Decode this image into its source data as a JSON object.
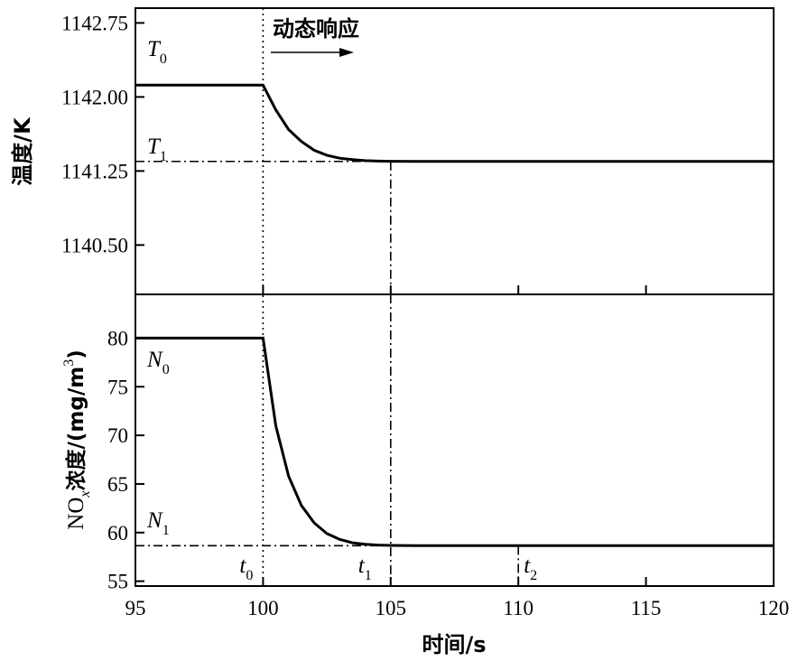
{
  "chart_data": [
    {
      "type": "line",
      "panel": "top",
      "ylabel": "温度/K",
      "ylim": [
        1140.0,
        1142.9
      ],
      "yticks": [
        "1140.50",
        "1141.25",
        "1142.00",
        "1142.75"
      ],
      "ytick_values": [
        1140.5,
        1141.25,
        1142.0,
        1142.75
      ],
      "xlim": [
        95,
        120
      ],
      "series": [
        {
          "x": [
            95,
            100,
            100.5,
            101,
            101.5,
            102,
            102.5,
            103,
            103.5,
            104,
            104.5,
            105,
            106,
            108,
            110,
            115,
            120
          ],
          "y": [
            1142.12,
            1142.12,
            1141.87,
            1141.67,
            1141.55,
            1141.46,
            1141.41,
            1141.38,
            1141.365,
            1141.355,
            1141.35,
            1141.348,
            1141.347,
            1141.347,
            1141.347,
            1141.347,
            1141.347
          ]
        }
      ],
      "reference_level": 1141.347,
      "labels": {
        "start_main": "T",
        "start_sub": "0",
        "end_main": "T",
        "end_sub": "1"
      },
      "annotation": {
        "text": "动态响应"
      }
    },
    {
      "type": "line",
      "panel": "bottom",
      "ylabel_main": "NO",
      "ylabel_sub": "x",
      "ylabel_rest": "浓度/(mg/m",
      "ylabel_sup": "3",
      "ylabel_close": ")",
      "ylim": [
        54.5,
        84.5
      ],
      "yticks": [
        55,
        60,
        65,
        70,
        75,
        80
      ],
      "xlim": [
        95,
        120
      ],
      "xticks": [
        95,
        100,
        105,
        110,
        115,
        120
      ],
      "xlabel": "时间/s",
      "series": [
        {
          "x": [
            95,
            100,
            100.5,
            101,
            101.5,
            102,
            102.5,
            103,
            103.5,
            104,
            104.5,
            105,
            106,
            108,
            110,
            115,
            120
          ],
          "y": [
            80,
            80,
            71,
            65.8,
            62.8,
            61,
            59.9,
            59.3,
            58.95,
            58.8,
            58.72,
            58.68,
            58.65,
            58.65,
            58.65,
            58.65,
            58.65
          ]
        }
      ],
      "reference_level": 58.65,
      "labels": {
        "start_main": "N",
        "start_sub": "0",
        "end_main": "N",
        "end_sub": "1"
      },
      "time_markers": [
        {
          "x": 100,
          "main": "t",
          "sub": "0"
        },
        {
          "x": 105,
          "main": "t",
          "sub": "1"
        },
        {
          "x": 110,
          "main": "t",
          "sub": "2"
        }
      ]
    }
  ]
}
